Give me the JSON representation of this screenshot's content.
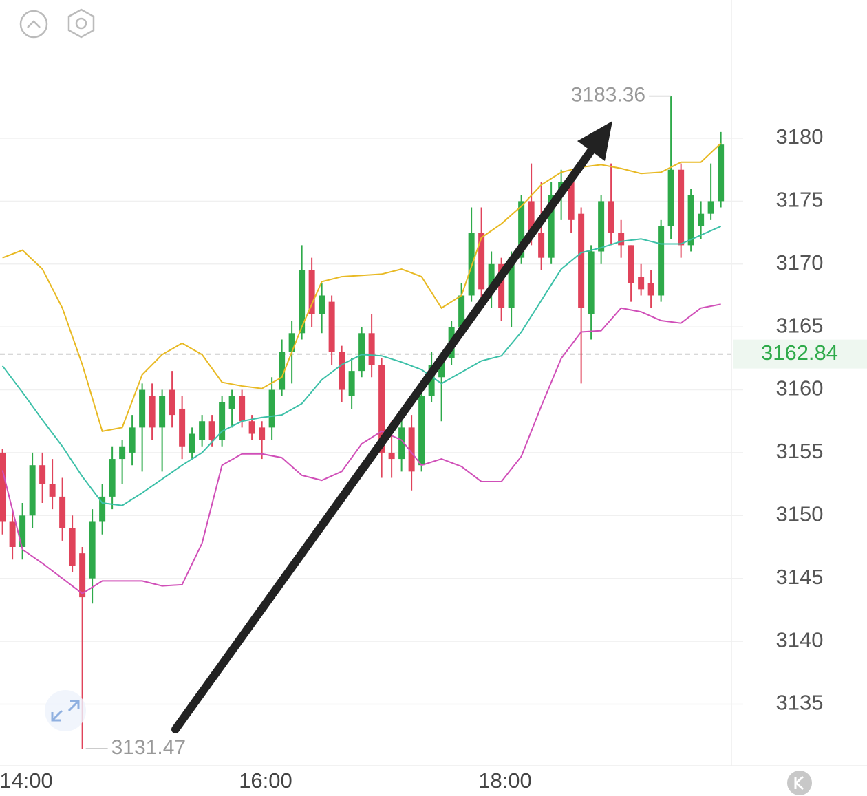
{
  "chart_data": {
    "type": "candlestick",
    "up_color": "#2eaa4a",
    "down_color": "#e0435a",
    "ohlc": [
      [
        3155,
        3155.3,
        3148.5,
        3149.5
      ],
      [
        3149.5,
        3150.5,
        3146.5,
        3147.5
      ],
      [
        3147.5,
        3151,
        3146.5,
        3150
      ],
      [
        3150,
        3155,
        3149,
        3154
      ],
      [
        3154,
        3155,
        3151,
        3152.5
      ],
      [
        3152.5,
        3154.5,
        3150.5,
        3151.5
      ],
      [
        3151.5,
        3153,
        3148,
        3149
      ],
      [
        3149,
        3150,
        3145.5,
        3146
      ],
      [
        3147,
        3147.5,
        3131.47,
        3143.5
      ],
      [
        3145,
        3150.5,
        3143,
        3149.5
      ],
      [
        3149.5,
        3152.5,
        3148.5,
        3151.5
      ],
      [
        3151.5,
        3155.5,
        3150.5,
        3154.5
      ],
      [
        3154.5,
        3156,
        3152.5,
        3155.5
      ],
      [
        3155,
        3158,
        3154,
        3157
      ],
      [
        3157,
        3160.5,
        3153.5,
        3160
      ],
      [
        3159.5,
        3160.5,
        3156,
        3157
      ],
      [
        3157,
        3160,
        3153.5,
        3159.5
      ],
      [
        3160,
        3161.5,
        3157,
        3158
      ],
      [
        3158.5,
        3159.5,
        3154.5,
        3155.5
      ],
      [
        3155,
        3157,
        3154.5,
        3156.5
      ],
      [
        3156,
        3158,
        3155.5,
        3157.5
      ],
      [
        3157.5,
        3158,
        3155.5,
        3156
      ],
      [
        3156,
        3159.5,
        3155.5,
        3159
      ],
      [
        3158.5,
        3160,
        3157,
        3159.5
      ],
      [
        3159.5,
        3160,
        3157,
        3157.5
      ],
      [
        3157.5,
        3158,
        3156,
        3156.5
      ],
      [
        3157,
        3157.5,
        3154.5,
        3156
      ],
      [
        3157,
        3161,
        3156,
        3160
      ],
      [
        3160,
        3164,
        3159.5,
        3163
      ],
      [
        3163,
        3165.5,
        3160.5,
        3164.5
      ],
      [
        3164.5,
        3171.5,
        3164,
        3169.5
      ],
      [
        3169.5,
        3170.5,
        3165,
        3166
      ],
      [
        3166,
        3168.5,
        3164.5,
        3167.5
      ],
      [
        3167,
        3167.5,
        3162,
        3163
      ],
      [
        3163,
        3163.5,
        3159,
        3160
      ],
      [
        3159.5,
        3162.5,
        3158.5,
        3161.5
      ],
      [
        3161.5,
        3165,
        3161,
        3164.5
      ],
      [
        3164.5,
        3166,
        3161,
        3162
      ],
      [
        3162,
        3162.5,
        3153,
        3155
      ],
      [
        3155,
        3157.5,
        3153,
        3154.5
      ],
      [
        3154.5,
        3158,
        3153.5,
        3157
      ],
      [
        3157,
        3158,
        3152,
        3153.5
      ],
      [
        3154,
        3160,
        3153.5,
        3159.5
      ],
      [
        3159.5,
        3163,
        3159,
        3162
      ],
      [
        3161,
        3163,
        3157.5,
        3162.5
      ],
      [
        3162.5,
        3165.5,
        3162,
        3165
      ],
      [
        3165,
        3168.5,
        3164.5,
        3167.5
      ],
      [
        3167.5,
        3174.5,
        3167,
        3172.5
      ],
      [
        3172.5,
        3174.5,
        3167,
        3168
      ],
      [
        3168,
        3171,
        3166.5,
        3170
      ],
      [
        3170,
        3170.5,
        3165.5,
        3166.5
      ],
      [
        3166.5,
        3171,
        3165,
        3170.5
      ],
      [
        3170.5,
        3175.5,
        3170,
        3175
      ],
      [
        3175,
        3178,
        3171.5,
        3172.5
      ],
      [
        3172.5,
        3176.5,
        3169.5,
        3170.5
      ],
      [
        3170.5,
        3176.5,
        3170,
        3175.5
      ],
      [
        3175.5,
        3177.5,
        3173.5,
        3176.5
      ],
      [
        3176.5,
        3177,
        3172.5,
        3173.5
      ],
      [
        3174,
        3174.5,
        3160.5,
        3166.5
      ],
      [
        3166,
        3171.5,
        3164,
        3171
      ],
      [
        3171,
        3175.5,
        3170,
        3175
      ],
      [
        3175,
        3178,
        3171.5,
        3172.5
      ],
      [
        3172.5,
        3173.5,
        3170.5,
        3171.5
      ],
      [
        3171.5,
        3171.5,
        3167,
        3168.5
      ],
      [
        3169,
        3170,
        3167.5,
        3168
      ],
      [
        3168.5,
        3169.5,
        3166.5,
        3167.5
      ],
      [
        3167.5,
        3173.5,
        3167,
        3173
      ],
      [
        3173,
        3183.36,
        3172,
        3177.5
      ],
      [
        3177.5,
        3178,
        3170.5,
        3171.5
      ],
      [
        3171.5,
        3176,
        3171,
        3175.5
      ],
      [
        3173,
        3175,
        3172,
        3174
      ],
      [
        3174,
        3178,
        3173.5,
        3175
      ],
      [
        3175,
        3180.5,
        3174.5,
        3179.5
      ]
    ],
    "line_x": [
      0,
      2,
      4,
      6,
      8,
      10,
      12,
      14,
      16,
      18,
      20,
      22,
      24,
      26,
      28,
      30,
      32,
      34,
      36,
      38,
      40,
      42,
      44,
      46,
      48,
      50,
      52,
      54,
      56,
      58,
      60,
      62,
      64,
      66,
      68,
      70,
      72
    ],
    "lines": [
      {
        "color": "#e8b923",
        "values": [
          3170.5,
          3171.1,
          3169.6,
          3166.5,
          3162,
          3156.7,
          3157,
          3161.2,
          3162.8,
          3163.7,
          3162.8,
          3160.6,
          3160.3,
          3160.1,
          3161,
          3165,
          3168.6,
          3169,
          3169.1,
          3169.2,
          3169.6,
          3169,
          3166.5,
          3167.5,
          3172.1,
          3173.2,
          3174.6,
          3176.3,
          3177.3,
          3177.7,
          3177.9,
          3177.6,
          3177.2,
          3177.3,
          3178.1,
          3178.1,
          3179.6
        ]
      },
      {
        "color": "#3cc0a8",
        "values": [
          3161.9,
          3159.8,
          3157.6,
          3155.5,
          3153.1,
          3151,
          3150.8,
          3151.8,
          3152.9,
          3154,
          3155,
          3156.7,
          3157.5,
          3157.8,
          3158,
          3158.9,
          3160.8,
          3162,
          3162.8,
          3162.7,
          3162.2,
          3161.6,
          3160.5,
          3161.4,
          3162.3,
          3162.7,
          3164.6,
          3167.1,
          3169.6,
          3170.9,
          3171.3,
          3171.8,
          3172,
          3171.6,
          3171.6,
          3172.3,
          3173
        ]
      },
      {
        "color": "#d04fb8",
        "values": [
          3153.6,
          3147.3,
          3146.2,
          3145,
          3143.8,
          3144.8,
          3144.8,
          3144.8,
          3144.4,
          3144.5,
          3147.8,
          3154,
          3154.9,
          3154.9,
          3154.6,
          3153.2,
          3152.8,
          3153.5,
          3155.7,
          3156.7,
          3156,
          3154,
          3154.5,
          3153.9,
          3152.7,
          3152.7,
          3154.7,
          3158.7,
          3162.5,
          3164.6,
          3164.7,
          3166.5,
          3166.2,
          3165.5,
          3165.3,
          3166.5,
          3166.8
        ]
      }
    ],
    "reference_price": 3162.84,
    "xlim": [
      -0.25,
      73.06
    ],
    "xticks": [
      {
        "value": 2.37,
        "label": "14:00"
      },
      {
        "value": 26.37,
        "label": "16:00"
      },
      {
        "value": 50.37,
        "label": "18:00"
      }
    ],
    "ylim": [
      3130.1,
      3191
    ],
    "yticks": [
      3135,
      3140,
      3145,
      3150,
      3155,
      3160,
      3165,
      3170,
      3175,
      3180
    ],
    "grid": true
  }
}
